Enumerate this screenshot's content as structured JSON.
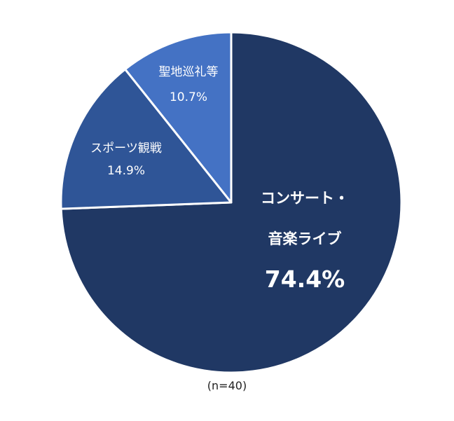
{
  "chart_data": {
    "type": "pie",
    "start": "top",
    "direction": "clockwise",
    "slices": [
      {
        "label_lines": [
          "コンサート・",
          "音楽ライブ"
        ],
        "value": 74.4,
        "value_label": "74.4%",
        "color": "#203864"
      },
      {
        "label_lines": [
          "スポーツ観戦"
        ],
        "value": 14.9,
        "value_label": "14.9%",
        "color": "#2f5597"
      },
      {
        "label_lines": [
          "聖地巡礼等"
        ],
        "value": 10.7,
        "value_label": "10.7%",
        "color": "#4472c4"
      }
    ],
    "note": "(n=40)"
  }
}
